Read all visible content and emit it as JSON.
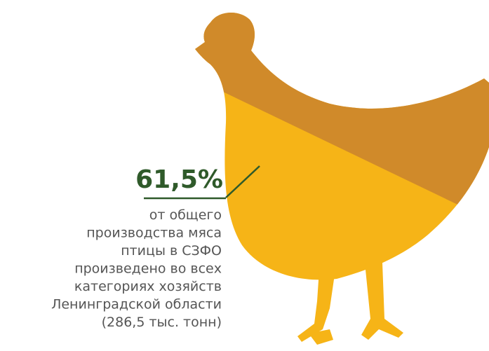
{
  "headline": "61,5%",
  "description": [
    "от общего",
    "производства мяса",
    "птицы в СЗФО",
    "произведено во всех",
    "категориях хозяйств",
    "Ленинградской области",
    "(286,5 тыс. тонн)"
  ]
}
